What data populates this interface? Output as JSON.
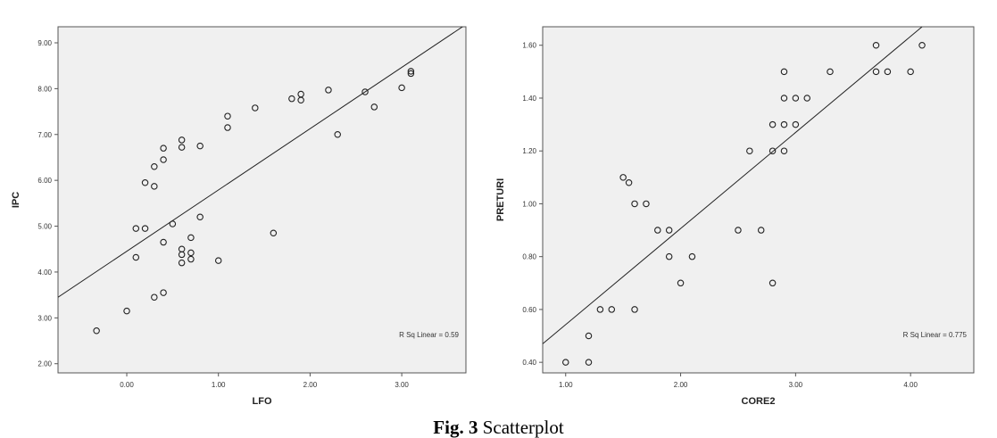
{
  "caption": {
    "prefix": "Fig. 3",
    "text": "Scatterplot"
  },
  "chart_data": [
    {
      "type": "scatter",
      "xlabel": "LFO",
      "ylabel": "IPC",
      "xlim": [
        -0.75,
        3.7
      ],
      "ylim": [
        1.8,
        9.35
      ],
      "xticks": [
        "0.00",
        "1.00",
        "2.00",
        "3.00"
      ],
      "xtick_values": [
        0,
        1,
        2,
        3
      ],
      "yticks": [
        "2.00",
        "3.00",
        "4.00",
        "5.00",
        "6.00",
        "7.00",
        "8.00",
        "9.00"
      ],
      "ytick_values": [
        2,
        3,
        4,
        5,
        6,
        7,
        8,
        9
      ],
      "annotation": "R Sq Linear = 0.59",
      "fit_line": {
        "x": [
          -0.75,
          3.7
        ],
        "y": [
          3.45,
          9.4
        ]
      },
      "points": [
        {
          "x": -0.33,
          "y": 2.72
        },
        {
          "x": 0.0,
          "y": 3.15
        },
        {
          "x": 0.1,
          "y": 4.32
        },
        {
          "x": 0.1,
          "y": 4.95
        },
        {
          "x": 0.2,
          "y": 4.95
        },
        {
          "x": 0.2,
          "y": 5.95
        },
        {
          "x": 0.3,
          "y": 5.87
        },
        {
          "x": 0.3,
          "y": 6.3
        },
        {
          "x": 0.3,
          "y": 3.45
        },
        {
          "x": 0.4,
          "y": 3.55
        },
        {
          "x": 0.4,
          "y": 4.65
        },
        {
          "x": 0.4,
          "y": 6.45
        },
        {
          "x": 0.4,
          "y": 6.7
        },
        {
          "x": 0.5,
          "y": 5.05
        },
        {
          "x": 0.6,
          "y": 4.2
        },
        {
          "x": 0.6,
          "y": 4.38
        },
        {
          "x": 0.6,
          "y": 4.5
        },
        {
          "x": 0.6,
          "y": 6.72
        },
        {
          "x": 0.6,
          "y": 6.88
        },
        {
          "x": 0.7,
          "y": 4.28
        },
        {
          "x": 0.7,
          "y": 4.42
        },
        {
          "x": 0.7,
          "y": 4.75
        },
        {
          "x": 0.8,
          "y": 5.2
        },
        {
          "x": 0.8,
          "y": 6.75
        },
        {
          "x": 1.0,
          "y": 4.25
        },
        {
          "x": 1.1,
          "y": 7.15
        },
        {
          "x": 1.1,
          "y": 7.4
        },
        {
          "x": 1.4,
          "y": 7.58
        },
        {
          "x": 1.6,
          "y": 4.85
        },
        {
          "x": 1.8,
          "y": 7.78
        },
        {
          "x": 1.9,
          "y": 7.75
        },
        {
          "x": 1.9,
          "y": 7.88
        },
        {
          "x": 2.2,
          "y": 7.97
        },
        {
          "x": 2.3,
          "y": 7.0
        },
        {
          "x": 2.6,
          "y": 7.93
        },
        {
          "x": 2.7,
          "y": 7.6
        },
        {
          "x": 3.0,
          "y": 8.02
        },
        {
          "x": 3.1,
          "y": 8.33
        },
        {
          "x": 3.1,
          "y": 8.38
        }
      ]
    },
    {
      "type": "scatter",
      "xlabel": "CORE2",
      "ylabel": "PRETURI",
      "xlim": [
        0.8,
        4.55
      ],
      "ylim": [
        0.36,
        1.67
      ],
      "xticks": [
        "1.00",
        "2.00",
        "3.00",
        "4.00"
      ],
      "xtick_values": [
        1,
        2,
        3,
        4
      ],
      "yticks": [
        "0.40",
        "0.60",
        "0.80",
        "1.00",
        "1.20",
        "1.40",
        "1.60"
      ],
      "ytick_values": [
        0.4,
        0.6,
        0.8,
        1.0,
        1.2,
        1.4,
        1.6
      ],
      "annotation": "R Sq Linear = 0.775",
      "fit_line": {
        "x": [
          0.8,
          4.1
        ],
        "y": [
          0.47,
          1.67
        ]
      },
      "points": [
        {
          "x": 1.0,
          "y": 0.4
        },
        {
          "x": 1.2,
          "y": 0.4
        },
        {
          "x": 1.2,
          "y": 0.5
        },
        {
          "x": 1.3,
          "y": 0.6
        },
        {
          "x": 1.4,
          "y": 0.6
        },
        {
          "x": 1.6,
          "y": 0.6
        },
        {
          "x": 1.5,
          "y": 1.1
        },
        {
          "x": 1.55,
          "y": 1.08
        },
        {
          "x": 1.6,
          "y": 1.0
        },
        {
          "x": 1.7,
          "y": 1.0
        },
        {
          "x": 1.8,
          "y": 0.9
        },
        {
          "x": 1.9,
          "y": 0.9
        },
        {
          "x": 1.9,
          "y": 0.8
        },
        {
          "x": 2.0,
          "y": 0.7
        },
        {
          "x": 2.1,
          "y": 0.8
        },
        {
          "x": 2.5,
          "y": 0.9
        },
        {
          "x": 2.6,
          "y": 1.2
        },
        {
          "x": 2.7,
          "y": 0.9
        },
        {
          "x": 2.8,
          "y": 0.7
        },
        {
          "x": 2.8,
          "y": 1.2
        },
        {
          "x": 2.8,
          "y": 1.3
        },
        {
          "x": 2.9,
          "y": 1.2
        },
        {
          "x": 2.9,
          "y": 1.3
        },
        {
          "x": 2.9,
          "y": 1.4
        },
        {
          "x": 2.9,
          "y": 1.5
        },
        {
          "x": 3.0,
          "y": 1.3
        },
        {
          "x": 3.0,
          "y": 1.4
        },
        {
          "x": 3.1,
          "y": 1.4
        },
        {
          "x": 3.3,
          "y": 1.5
        },
        {
          "x": 3.7,
          "y": 1.5
        },
        {
          "x": 3.7,
          "y": 1.6
        },
        {
          "x": 3.8,
          "y": 1.5
        },
        {
          "x": 4.0,
          "y": 1.5
        },
        {
          "x": 4.1,
          "y": 1.6
        }
      ]
    }
  ]
}
